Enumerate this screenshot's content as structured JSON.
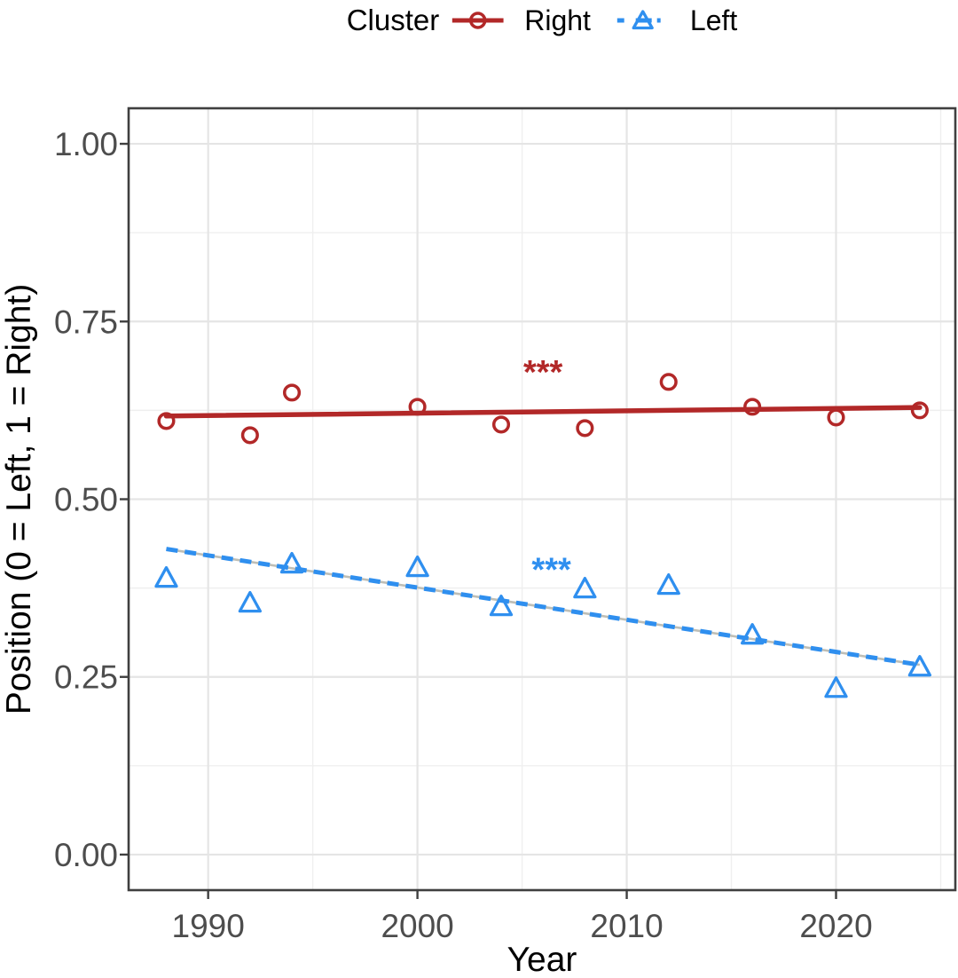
{
  "legend": {
    "title": "Cluster"
  },
  "chart_data": {
    "type": "scatter",
    "title": "",
    "xlabel": "Year",
    "ylabel": "Position (0 = Left, 1 = Right)",
    "xlim": [
      1986.2,
      2025.7
    ],
    "ylim": [
      -0.05,
      1.05
    ],
    "x_major_ticks": [
      1990,
      2000,
      2010,
      2020
    ],
    "x_minor_gridlines": [
      1995,
      2005,
      2015,
      2025
    ],
    "y_major_ticks": [
      1.0,
      0.75,
      0.5,
      0.25,
      0.0
    ],
    "y_minor_gridlines": [
      0.875,
      0.625,
      0.375,
      0.125
    ],
    "grid": true,
    "legend_position": "top-center",
    "panel_border_color": "#3F3F3F",
    "major_grid_color": "#E5E5E5",
    "minor_grid_color": "#EFEFEF",
    "tick_label_color": "#4D4D4D",
    "trend_underlay_color": "#BEBEB6",
    "series": [
      {
        "name": "Right",
        "marker": "circle",
        "linetype": "solid",
        "color": "#B22828",
        "x": [
          1988,
          1992,
          1994,
          2000,
          2004,
          2008,
          2012,
          2016,
          2020,
          2024
        ],
        "y": [
          0.61,
          0.59,
          0.65,
          0.63,
          0.605,
          0.6,
          0.665,
          0.63,
          0.615,
          0.625
        ],
        "trend": {
          "x": [
            1988,
            2024
          ],
          "y": [
            0.617,
            0.629
          ]
        },
        "annotation": {
          "text": "***",
          "x": 2006.0,
          "y": 0.688
        }
      },
      {
        "name": "Left",
        "marker": "triangle",
        "linetype": "dashed",
        "color": "#2F8FEF",
        "x": [
          1988,
          1992,
          1994,
          2000,
          2004,
          2008,
          2012,
          2016,
          2020,
          2024
        ],
        "y": [
          0.39,
          0.355,
          0.41,
          0.405,
          0.35,
          0.375,
          0.38,
          0.31,
          0.235,
          0.265
        ],
        "trend": {
          "x": [
            1988,
            2024
          ],
          "y": [
            0.43,
            0.267
          ]
        },
        "annotation": {
          "text": "***",
          "x": 2006.4,
          "y": 0.41
        }
      }
    ]
  }
}
